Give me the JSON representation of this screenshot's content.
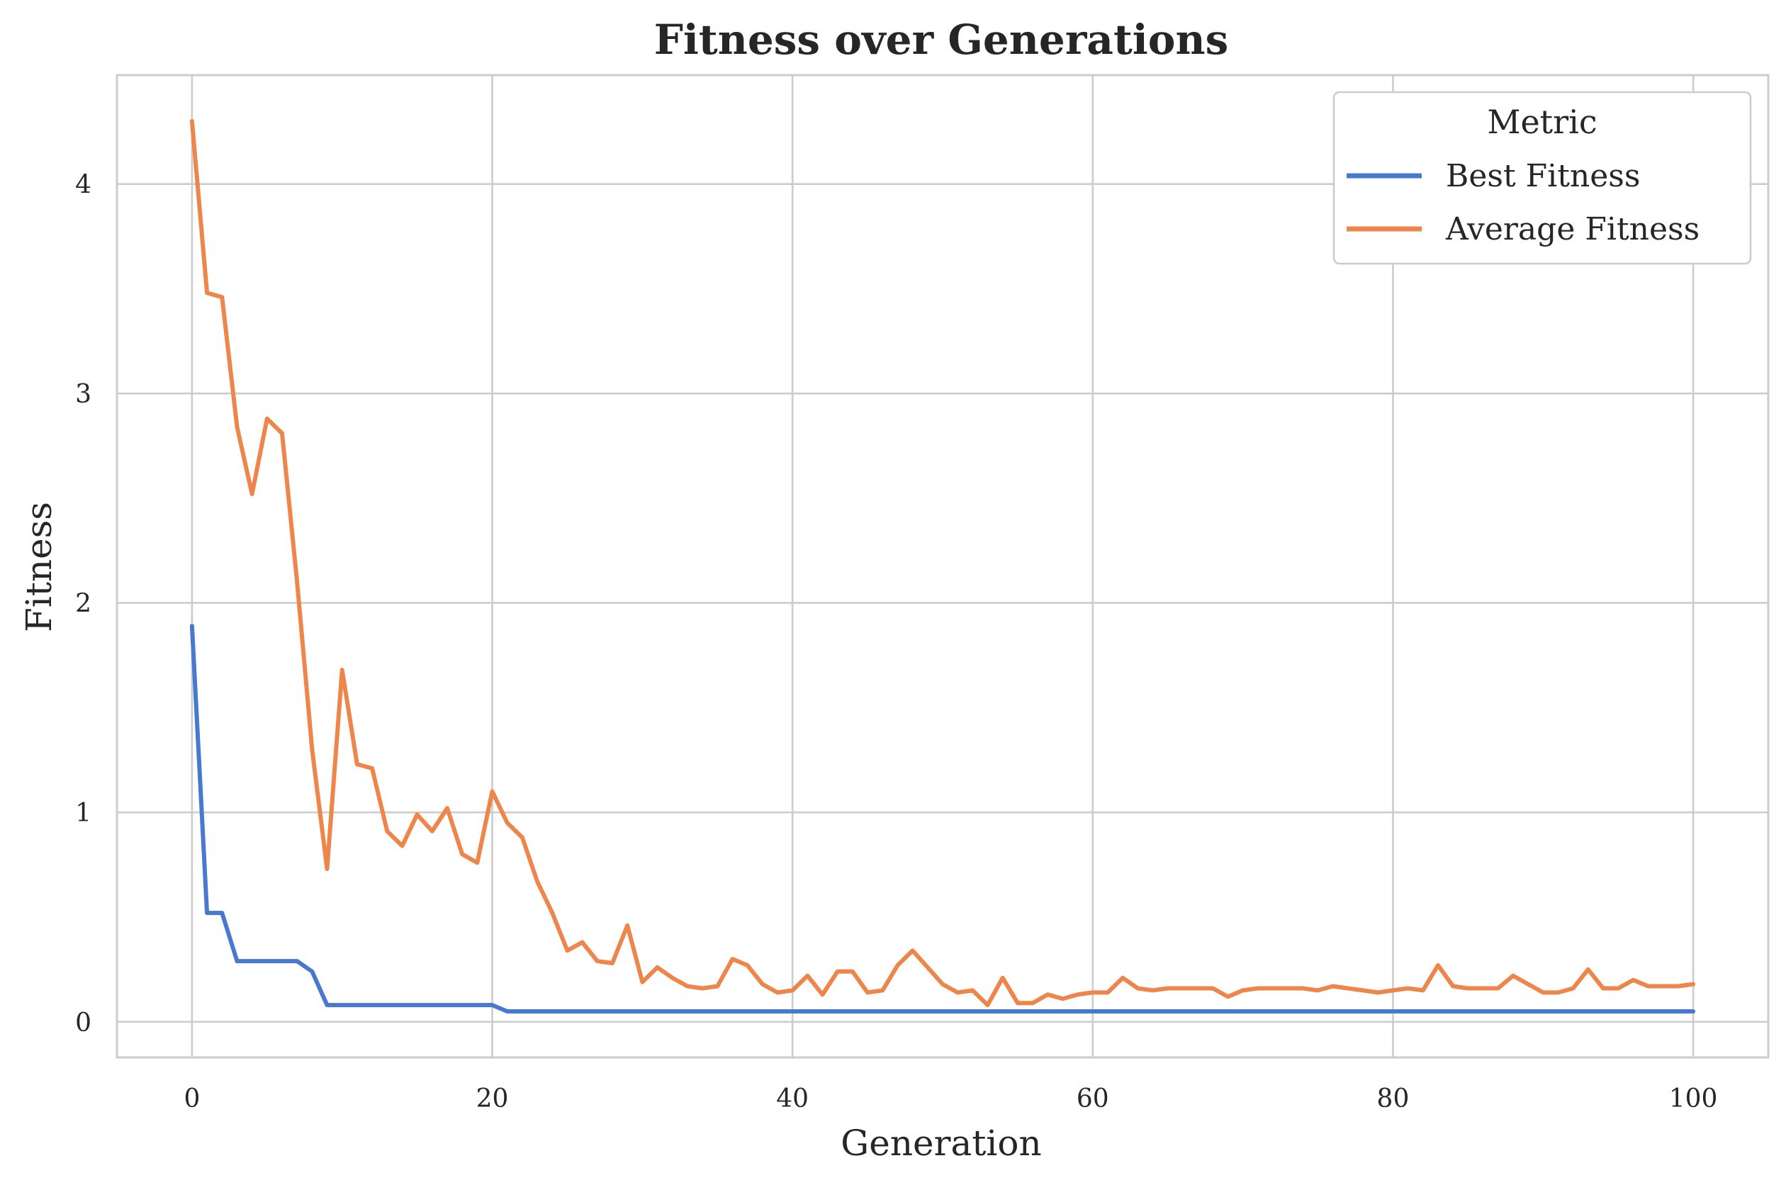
{
  "chart_data": {
    "type": "line",
    "title": "Fitness over Generations",
    "xlabel": "Generation",
    "ylabel": "Fitness",
    "xlim": [
      -5,
      105
    ],
    "ylim": [
      -0.17,
      4.52
    ],
    "xticks": [
      0,
      20,
      40,
      60,
      80,
      100
    ],
    "yticks": [
      0,
      1,
      2,
      3,
      4
    ],
    "grid": true,
    "legend": {
      "title": "Metric",
      "placement": "top-right"
    },
    "x": [
      0,
      1,
      2,
      3,
      4,
      5,
      6,
      7,
      8,
      9,
      10,
      11,
      12,
      13,
      14,
      15,
      16,
      17,
      18,
      19,
      20,
      21,
      22,
      23,
      24,
      25,
      26,
      27,
      28,
      29,
      30,
      31,
      32,
      33,
      34,
      35,
      36,
      37,
      38,
      39,
      40,
      41,
      42,
      43,
      44,
      45,
      46,
      47,
      48,
      49,
      50,
      51,
      52,
      53,
      54,
      55,
      56,
      57,
      58,
      59,
      60,
      61,
      62,
      63,
      64,
      65,
      66,
      67,
      68,
      69,
      70,
      71,
      72,
      73,
      74,
      75,
      76,
      77,
      78,
      79,
      80,
      81,
      82,
      83,
      84,
      85,
      86,
      87,
      88,
      89,
      90,
      91,
      92,
      93,
      94,
      95,
      96,
      97,
      98,
      99,
      100
    ],
    "series": [
      {
        "name": "Best Fitness",
        "color": "#4878d0",
        "values": [
          1.89,
          0.52,
          0.52,
          0.29,
          0.29,
          0.29,
          0.29,
          0.29,
          0.24,
          0.08,
          0.08,
          0.08,
          0.08,
          0.08,
          0.08,
          0.08,
          0.08,
          0.08,
          0.08,
          0.08,
          0.08,
          0.05,
          0.05,
          0.05,
          0.05,
          0.05,
          0.05,
          0.05,
          0.05,
          0.05,
          0.05,
          0.05,
          0.05,
          0.05,
          0.05,
          0.05,
          0.05,
          0.05,
          0.05,
          0.05,
          0.05,
          0.05,
          0.05,
          0.05,
          0.05,
          0.05,
          0.05,
          0.05,
          0.05,
          0.05,
          0.05,
          0.05,
          0.05,
          0.05,
          0.05,
          0.05,
          0.05,
          0.05,
          0.05,
          0.05,
          0.05,
          0.05,
          0.05,
          0.05,
          0.05,
          0.05,
          0.05,
          0.05,
          0.05,
          0.05,
          0.05,
          0.05,
          0.05,
          0.05,
          0.05,
          0.05,
          0.05,
          0.05,
          0.05,
          0.05,
          0.05,
          0.05,
          0.05,
          0.05,
          0.05,
          0.05,
          0.05,
          0.05,
          0.05,
          0.05,
          0.05,
          0.05,
          0.05,
          0.05,
          0.05,
          0.05,
          0.05,
          0.05,
          0.05,
          0.05,
          0.05
        ]
      },
      {
        "name": "Average Fitness",
        "color": "#ee854a",
        "values": [
          4.3,
          3.48,
          3.46,
          2.84,
          2.52,
          2.88,
          2.81,
          2.1,
          1.3,
          0.73,
          1.68,
          1.23,
          1.21,
          0.91,
          0.84,
          0.99,
          0.91,
          1.02,
          0.8,
          0.76,
          1.1,
          0.95,
          0.88,
          0.67,
          0.52,
          0.34,
          0.38,
          0.29,
          0.28,
          0.46,
          0.19,
          0.26,
          0.21,
          0.17,
          0.16,
          0.17,
          0.3,
          0.27,
          0.18,
          0.14,
          0.15,
          0.22,
          0.13,
          0.24,
          0.24,
          0.14,
          0.15,
          0.27,
          0.34,
          0.26,
          0.18,
          0.14,
          0.15,
          0.08,
          0.21,
          0.09,
          0.09,
          0.13,
          0.11,
          0.13,
          0.14,
          0.14,
          0.21,
          0.16,
          0.15,
          0.16,
          0.16,
          0.16,
          0.16,
          0.12,
          0.15,
          0.16,
          0.16,
          0.16,
          0.16,
          0.15,
          0.17,
          0.16,
          0.15,
          0.14,
          0.15,
          0.16,
          0.15,
          0.27,
          0.17,
          0.16,
          0.16,
          0.16,
          0.22,
          0.18,
          0.14,
          0.14,
          0.16,
          0.25,
          0.16,
          0.16,
          0.2,
          0.17,
          0.17,
          0.17,
          0.18
        ]
      }
    ]
  }
}
